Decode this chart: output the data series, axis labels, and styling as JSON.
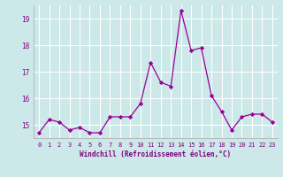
{
  "x": [
    0,
    1,
    2,
    3,
    4,
    5,
    6,
    7,
    8,
    9,
    10,
    11,
    12,
    13,
    14,
    15,
    16,
    17,
    18,
    19,
    20,
    21,
    22,
    23
  ],
  "y": [
    14.7,
    15.2,
    15.1,
    14.8,
    14.9,
    14.7,
    14.7,
    15.3,
    15.3,
    15.3,
    15.8,
    17.35,
    16.6,
    16.45,
    19.3,
    17.8,
    17.9,
    16.1,
    15.5,
    14.8,
    15.3,
    15.4,
    15.4,
    15.1
  ],
  "line_color": "#990099",
  "marker": "D",
  "marker_size": 2.2,
  "bg_color": "#cce8e8",
  "grid_color": "#ffffff",
  "xlabel": "Windchill (Refroidissement éolien,°C)",
  "ylim": [
    14.5,
    19.5
  ],
  "yticks": [
    15,
    16,
    17,
    18,
    19
  ],
  "xticks": [
    0,
    1,
    2,
    3,
    4,
    5,
    6,
    7,
    8,
    9,
    10,
    11,
    12,
    13,
    14,
    15,
    16,
    17,
    18,
    19,
    20,
    21,
    22,
    23
  ],
  "font_color": "#800080"
}
